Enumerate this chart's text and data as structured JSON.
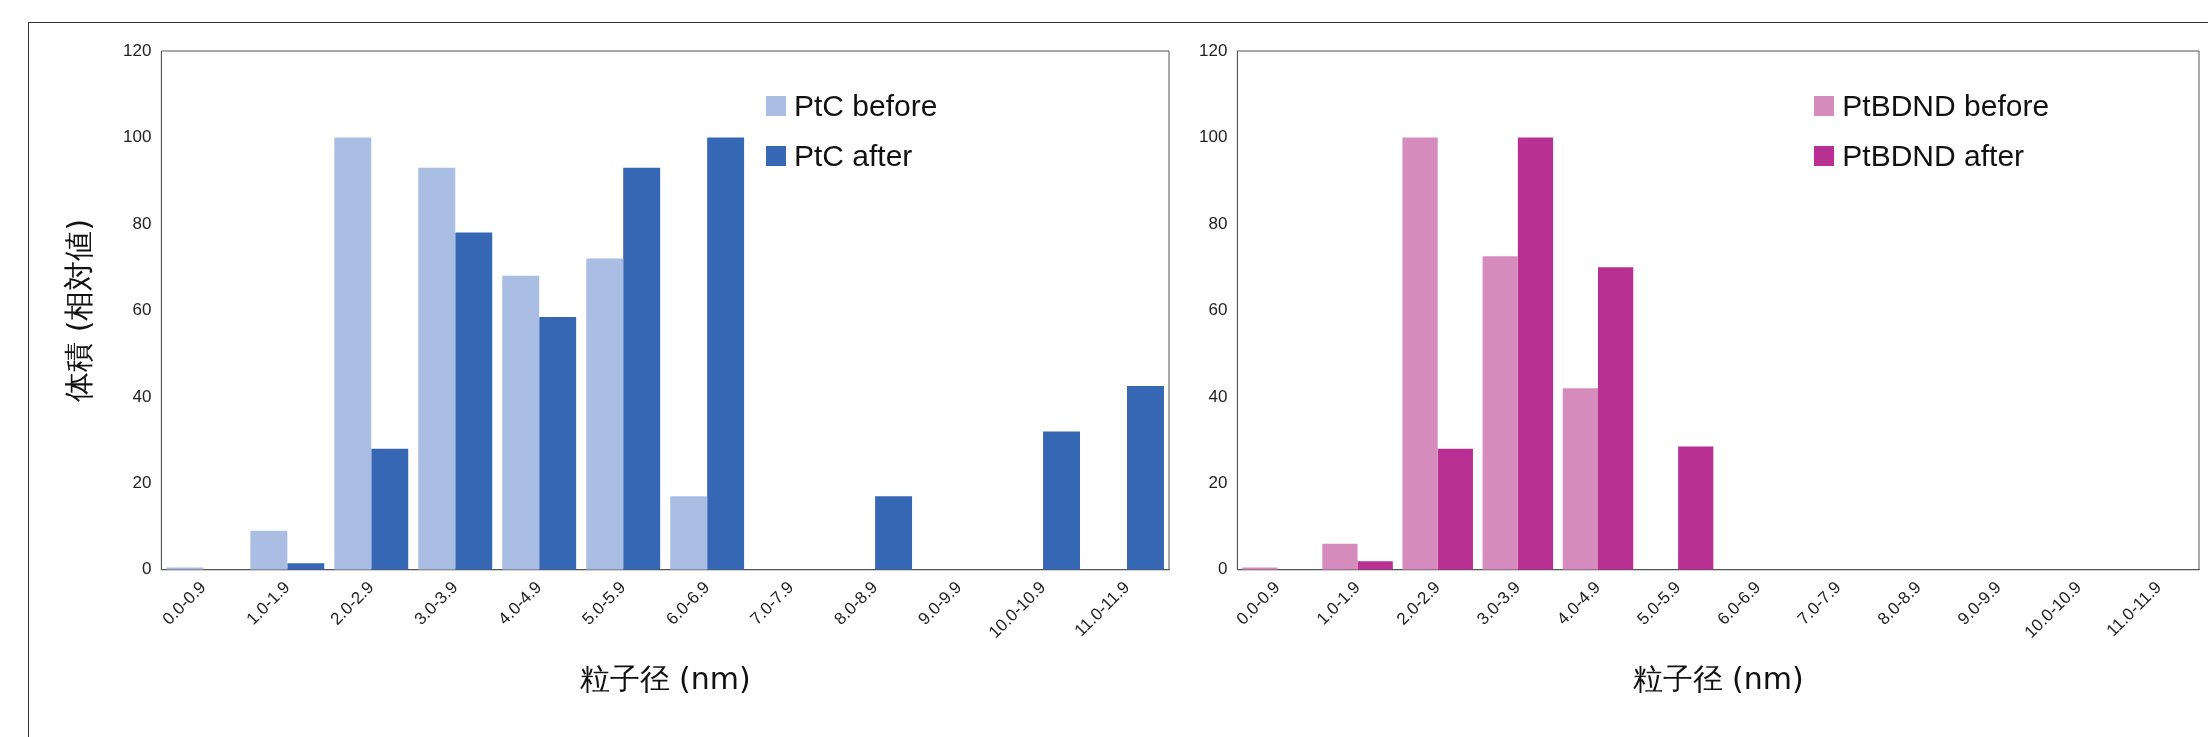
{
  "chart_data": [
    {
      "type": "bar",
      "xlabel": "粒子径 (nm)",
      "ylabel": "体積 (相対値)",
      "categories": [
        "0.0-0.9",
        "1.0-1.9",
        "2.0-2.9",
        "3.0-3.9",
        "4.0-4.9",
        "5.0-5.9",
        "6.0-6.9",
        "7.0-7.9",
        "8.0-8.9",
        "9.0-9.9",
        "10.0-10.9",
        "11.0-11.9"
      ],
      "series": [
        {
          "name": "PtC before",
          "color": "#aabde3",
          "values": [
            0.5,
            9,
            100,
            93,
            68,
            72,
            17,
            0,
            0,
            0,
            0,
            0
          ]
        },
        {
          "name": "PtC after",
          "color": "#3567b5",
          "values": [
            0,
            1.5,
            28,
            78,
            58.5,
            93,
            100,
            0,
            17,
            0,
            32,
            42.5
          ]
        }
      ],
      "ylim": [
        0,
        120
      ],
      "yticks": [
        0,
        20,
        40,
        60,
        80,
        100,
        120
      ],
      "legend": "top right"
    },
    {
      "type": "bar",
      "xlabel": "粒子径 (nm)",
      "categories": [
        "0.0-0.9",
        "1.0-1.9",
        "2.0-2.9",
        "3.0-3.9",
        "4.0-4.9",
        "5.0-5.9",
        "6.0-6.9",
        "7.0-7.9",
        "8.0-8.9",
        "9.0-9.9",
        "10.0-10.9",
        "11.0-11.9"
      ],
      "series": [
        {
          "name": "PtBDND before",
          "color": "#d68bbd",
          "values": [
            0.5,
            6,
            100,
            72.5,
            42,
            0,
            0,
            0,
            0,
            0,
            0,
            0
          ]
        },
        {
          "name": "PtBDND after",
          "color": "#b83092",
          "values": [
            0,
            2,
            28,
            100,
            70,
            28.5,
            0,
            0,
            0,
            0,
            0,
            0
          ]
        }
      ],
      "ylim": [
        0,
        120
      ],
      "yticks": [
        0,
        20,
        40,
        60,
        80,
        100,
        120
      ],
      "legend": "top right"
    }
  ]
}
